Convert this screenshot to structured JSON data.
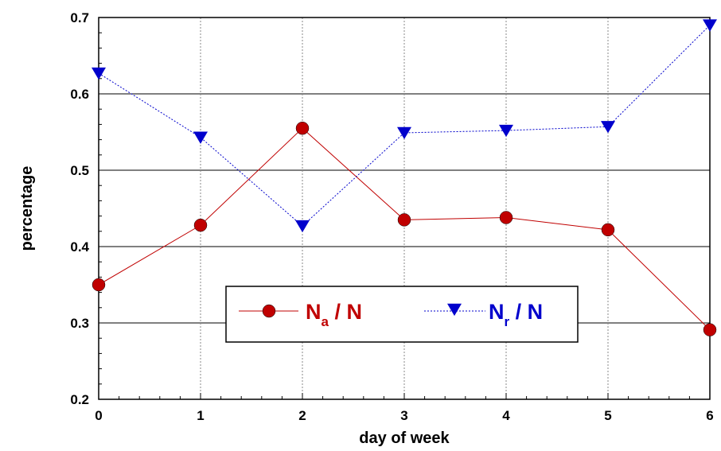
{
  "chart_data": {
    "type": "line",
    "xlabel": "day  of week",
    "ylabel": "percentage",
    "xlim": [
      0,
      6
    ],
    "ylim": [
      0.2,
      0.7
    ],
    "x_ticks": [
      "0",
      "1",
      "2",
      "3",
      "4",
      "5",
      "6"
    ],
    "y_ticks": [
      "0.2",
      "0.3",
      "0.4",
      "0.5",
      "0.6",
      "0.7"
    ],
    "grid": true,
    "legend_position": "center-bottom",
    "x": [
      0,
      1,
      2,
      3,
      4,
      5,
      6
    ],
    "series": [
      {
        "key": "na",
        "legend": {
          "main": "N",
          "sub": "a",
          "rest": " / N"
        },
        "color": "#c00000",
        "line_style": "solid",
        "marker": "circle",
        "values": [
          0.35,
          0.428,
          0.555,
          0.435,
          0.438,
          0.422,
          0.291
        ]
      },
      {
        "key": "nr",
        "legend": {
          "main": "N",
          "sub": "r",
          "rest": " / N"
        },
        "color": "#0000cc",
        "line_style": "dotted",
        "marker": "triangle-down",
        "values": [
          0.627,
          0.543,
          0.427,
          0.549,
          0.552,
          0.557,
          0.69
        ]
      }
    ]
  }
}
